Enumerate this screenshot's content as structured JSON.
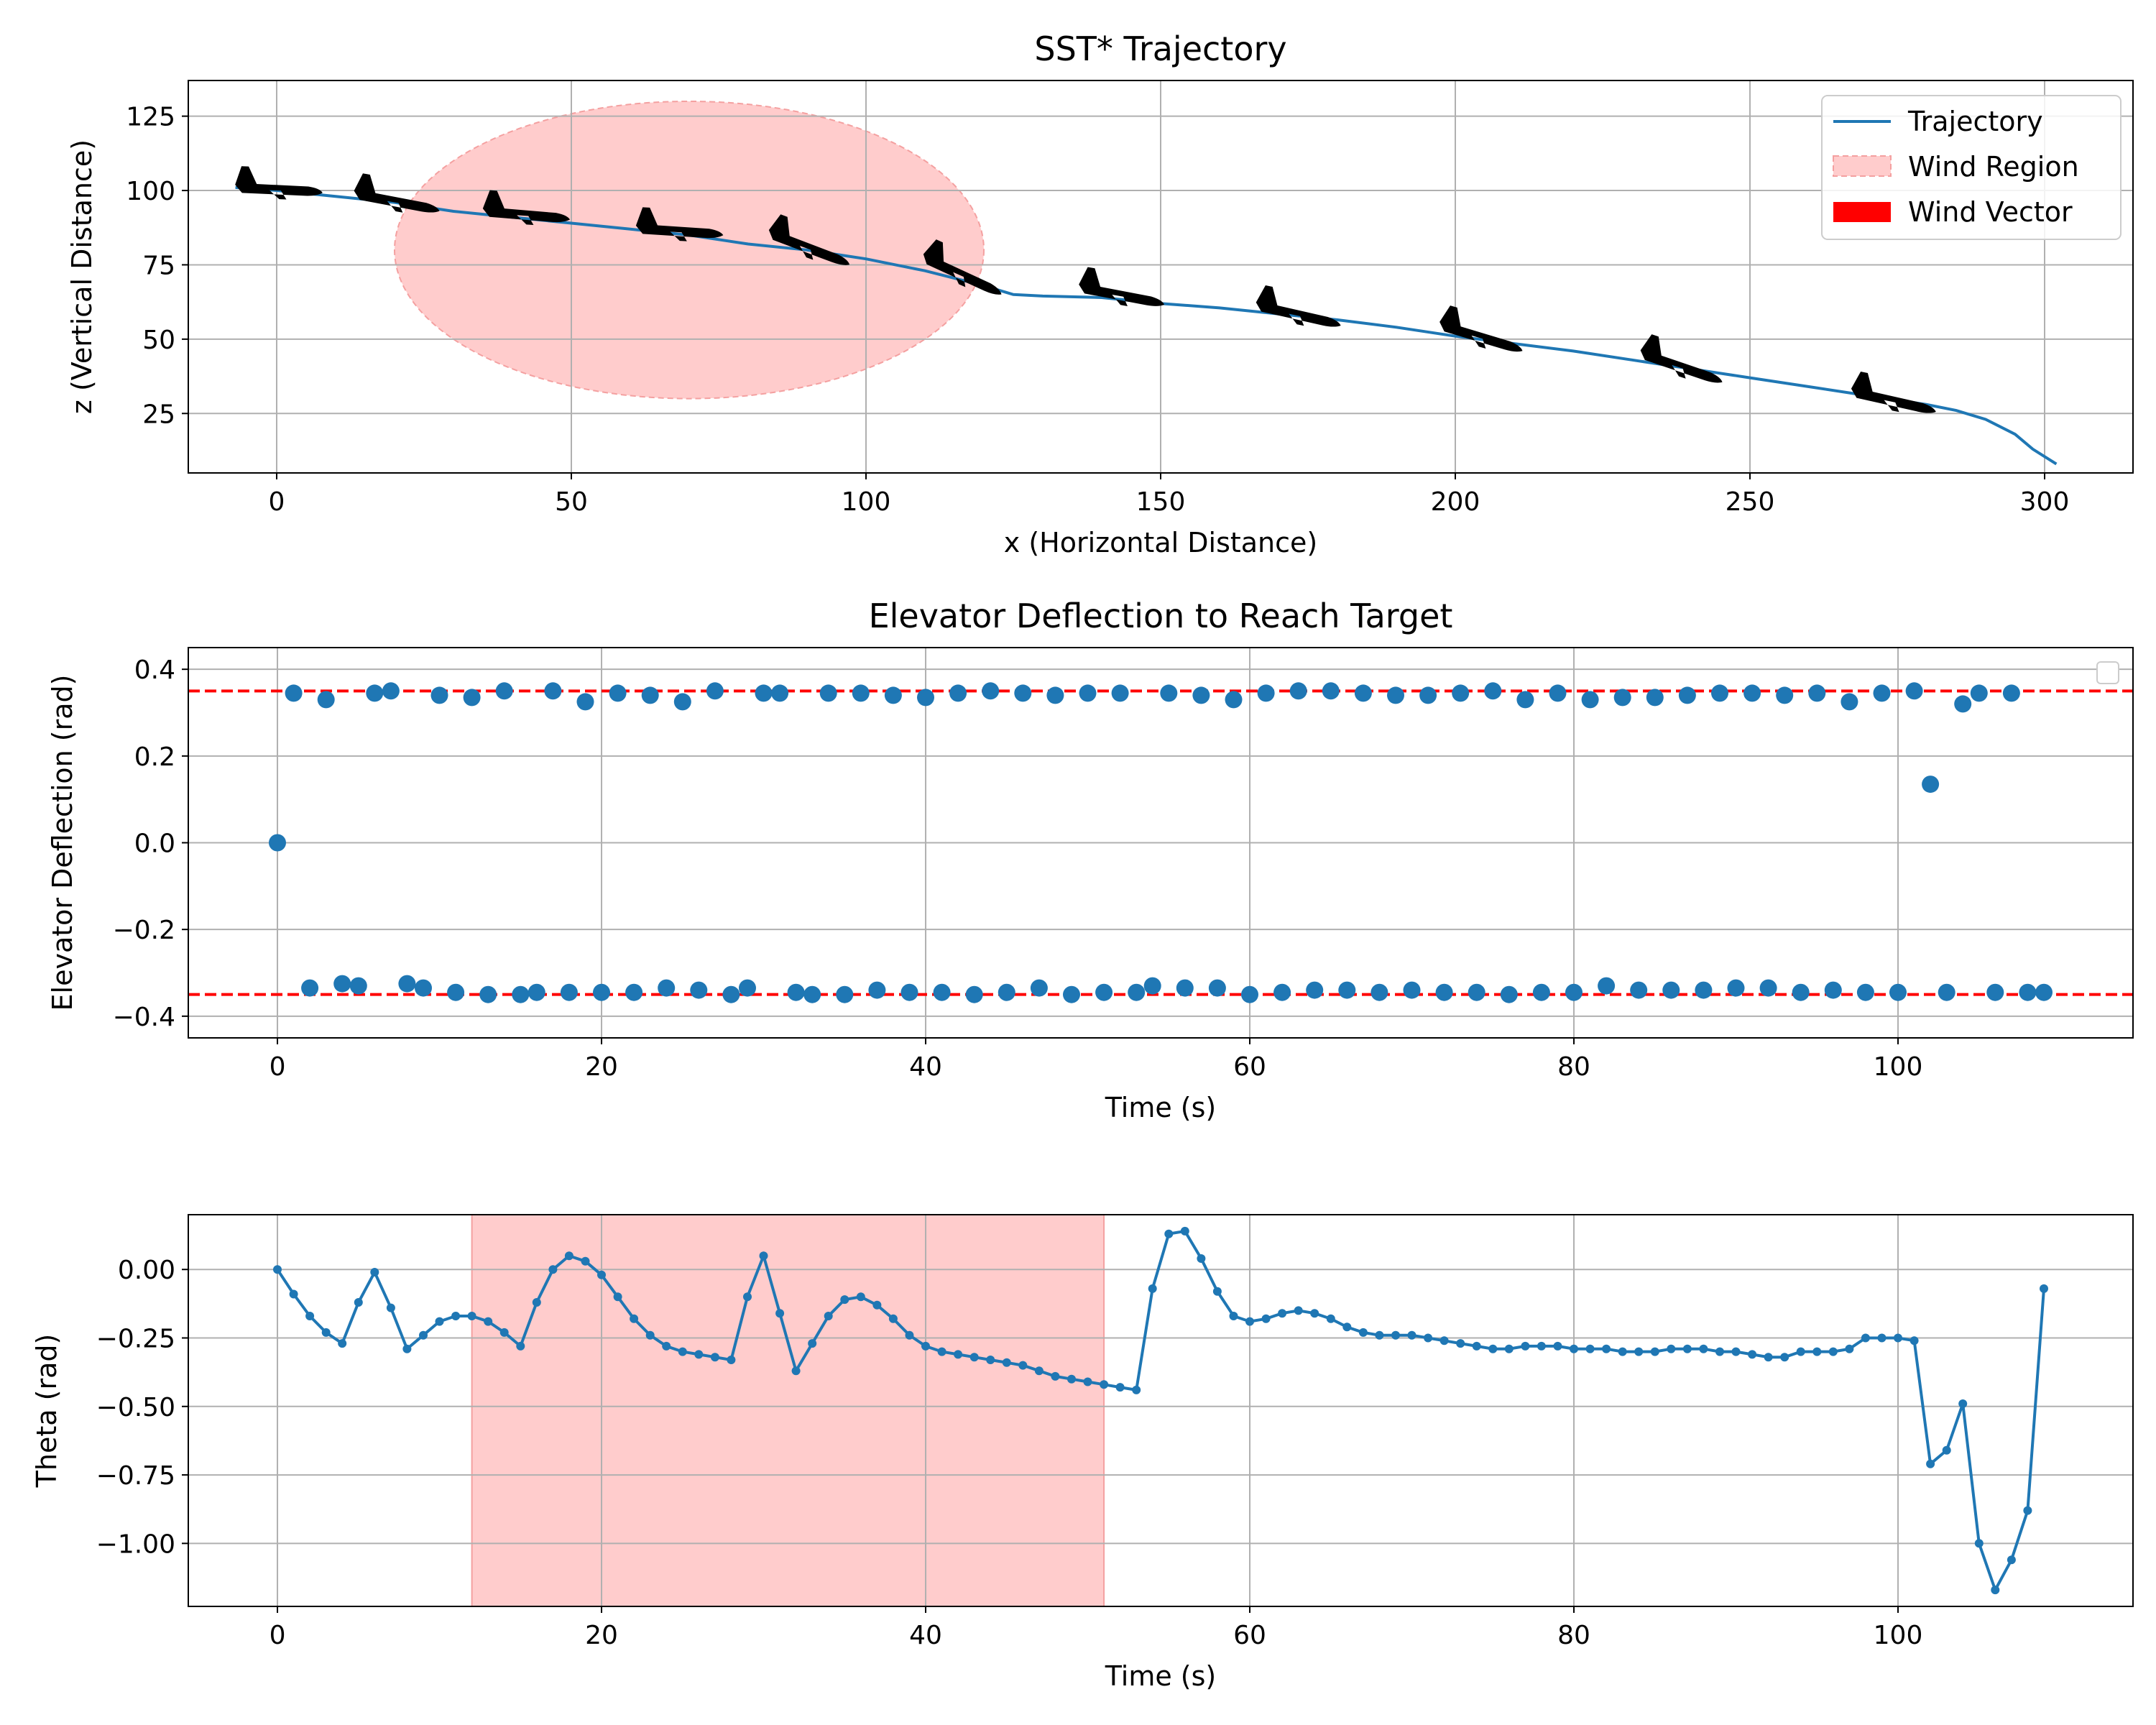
{
  "chart_data": [
    {
      "type": "line",
      "title": "SST* Trajectory",
      "xlabel": "x (Horizontal Distance)",
      "ylabel": "z (Vertical Distance)",
      "xlim": [
        -15,
        315
      ],
      "ylim": [
        5,
        137
      ],
      "xticks": [
        0,
        50,
        100,
        150,
        200,
        250,
        300
      ],
      "yticks": [
        25,
        50,
        75,
        100,
        125
      ],
      "xticklabels": [
        "0",
        "50",
        "100",
        "150",
        "200",
        "250",
        "300"
      ],
      "yticklabels": [
        "25",
        "50",
        "75",
        "100",
        "125"
      ],
      "grid": true,
      "legend_position": "top-right",
      "legend": [
        "Trajectory",
        "Wind Region",
        "Wind Vector"
      ],
      "colors": {
        "trajectory": "#1f77b4",
        "wind_region": "#ffcccc",
        "wind_region_edge": "#f4a0a0",
        "wind_vector": "#ff0000",
        "aircraft": "#000000"
      },
      "series": [
        {
          "name": "Trajectory",
          "x": [
            -7,
            0,
            10,
            20,
            30,
            40,
            50,
            60,
            70,
            80,
            90,
            100,
            110,
            120,
            125,
            130,
            140,
            150,
            160,
            170,
            180,
            190,
            200,
            210,
            220,
            230,
            240,
            250,
            260,
            270,
            280,
            285,
            290,
            295,
            298,
            302
          ],
          "y": [
            101,
            100,
            98,
            96,
            93,
            91,
            89,
            87,
            85,
            82,
            80,
            77,
            73,
            68,
            65,
            64.5,
            64,
            62,
            60.5,
            58.5,
            56.5,
            54,
            51,
            48.5,
            46,
            43,
            40,
            37,
            34,
            31,
            28,
            26,
            23,
            18,
            13,
            8
          ]
        }
      ],
      "wind_region": {
        "center_x": 70,
        "center_z": 80,
        "radius_x": 50,
        "radius_z": 50
      },
      "aircraft": [
        {
          "x": 0,
          "z": 100.5,
          "angle_deg": 2
        },
        {
          "x": 20,
          "z": 96.5,
          "angle_deg": 10
        },
        {
          "x": 42,
          "z": 92,
          "angle_deg": 4
        },
        {
          "x": 68,
          "z": 86.5,
          "angle_deg": 3
        },
        {
          "x": 90,
          "z": 81,
          "angle_deg": 20
        },
        {
          "x": 116,
          "z": 72,
          "angle_deg": 24
        },
        {
          "x": 143,
          "z": 65,
          "angle_deg": 10
        },
        {
          "x": 173,
          "z": 58.5,
          "angle_deg": 12
        },
        {
          "x": 204,
          "z": 51,
          "angle_deg": 16
        },
        {
          "x": 238,
          "z": 41,
          "angle_deg": 18
        },
        {
          "x": 274,
          "z": 29.5,
          "angle_deg": 12
        }
      ]
    },
    {
      "type": "scatter",
      "title": "Elevator Deflection to Reach Target",
      "xlabel": "Time (s)",
      "ylabel": "Elevator Deflection (rad)",
      "xlim": [
        -5.5,
        114.5
      ],
      "ylim": [
        -0.45,
        0.45
      ],
      "xticks": [
        0,
        20,
        40,
        60,
        80,
        100
      ],
      "yticks": [
        -0.4,
        -0.2,
        0.0,
        0.2,
        0.4
      ],
      "xticklabels": [
        "0",
        "20",
        "40",
        "60",
        "80",
        "100"
      ],
      "yticklabels": [
        "−0.4",
        "−0.2",
        "0.0",
        "0.2",
        "0.4"
      ],
      "grid": true,
      "legend_position": "top-right",
      "reference_lines": [
        0.35,
        -0.35
      ],
      "colors": {
        "points": "#1f77b4",
        "reference": "#ff0000"
      },
      "series": [
        {
          "x": [
            0,
            1,
            2,
            3,
            4,
            5,
            6,
            7,
            8,
            9,
            10,
            11,
            12,
            13,
            14,
            15,
            16,
            17,
            18,
            19,
            20,
            21,
            22,
            23,
            24,
            25,
            26,
            27,
            28,
            29,
            30,
            31,
            32,
            33,
            34,
            35,
            36,
            37,
            38,
            39,
            40,
            41,
            42,
            43,
            44,
            45,
            46,
            47,
            48,
            49,
            50,
            51,
            52,
            53,
            54,
            55,
            56,
            57,
            58,
            59,
            60,
            61,
            62,
            63,
            64,
            65,
            66,
            67,
            68,
            69,
            70,
            71,
            72,
            73,
            74,
            75,
            76,
            77,
            78,
            79,
            80,
            81,
            82,
            83,
            84,
            85,
            86,
            87,
            88,
            89,
            90,
            91,
            92,
            93,
            94,
            95,
            96,
            97,
            98,
            99,
            100,
            101,
            102,
            103,
            104,
            105,
            106,
            107,
            108,
            109
          ],
          "y": [
            0.0,
            0.345,
            -0.335,
            0.33,
            -0.325,
            -0.33,
            0.345,
            0.35,
            -0.325,
            -0.335,
            0.34,
            -0.345,
            0.335,
            -0.35,
            0.35,
            -0.35,
            -0.345,
            0.35,
            -0.345,
            0.325,
            -0.345,
            0.345,
            -0.345,
            0.34,
            -0.335,
            0.325,
            -0.34,
            0.35,
            -0.35,
            -0.335,
            0.345,
            0.345,
            -0.345,
            -0.35,
            0.345,
            -0.35,
            0.345,
            -0.34,
            0.34,
            -0.345,
            0.335,
            -0.345,
            0.345,
            -0.35,
            0.35,
            -0.345,
            0.345,
            -0.335,
            0.34,
            -0.35,
            0.345,
            -0.345,
            0.345,
            -0.345,
            -0.33,
            0.345,
            -0.335,
            0.34,
            -0.335,
            0.33,
            -0.35,
            0.345,
            -0.345,
            0.35,
            -0.34,
            0.35,
            -0.34,
            0.345,
            -0.345,
            0.34,
            -0.34,
            0.34,
            -0.345,
            0.345,
            -0.345,
            0.35,
            -0.35,
            0.33,
            -0.345,
            0.345,
            -0.345,
            0.33,
            -0.33,
            0.335,
            -0.34,
            0.335,
            -0.34,
            0.34,
            -0.34,
            0.345,
            -0.335,
            0.345,
            -0.335,
            0.34,
            -0.345,
            0.345,
            -0.34,
            0.325,
            -0.345,
            0.345,
            -0.345,
            0.35,
            0.135,
            -0.345,
            0.32,
            0.345,
            -0.345,
            0.345,
            -0.345,
            -0.345
          ]
        }
      ]
    },
    {
      "type": "line",
      "title": "",
      "xlabel": "Time (s)",
      "ylabel": "Theta (rad)",
      "xlim": [
        -5.5,
        114.5
      ],
      "ylim": [
        -1.23,
        0.2
      ],
      "xticks": [
        0,
        20,
        40,
        60,
        80,
        100
      ],
      "yticks": [
        0.0,
        -0.25,
        -0.5,
        -0.75,
        -1.0
      ],
      "xticklabels": [
        "0",
        "20",
        "40",
        "60",
        "80",
        "100"
      ],
      "yticklabels": [
        "0.00",
        "−0.25",
        "−0.50",
        "−0.75",
        "−1.00"
      ],
      "grid": true,
      "shaded_span": [
        12,
        51
      ],
      "colors": {
        "line": "#1f77b4",
        "shade": "#ffcccc",
        "shade_edge": "#f4a0a0"
      },
      "series": [
        {
          "x": [
            0,
            1,
            2,
            3,
            4,
            5,
            6,
            7,
            8,
            9,
            10,
            11,
            12,
            13,
            14,
            15,
            16,
            17,
            18,
            19,
            20,
            21,
            22,
            23,
            24,
            25,
            26,
            27,
            28,
            29,
            30,
            31,
            32,
            33,
            34,
            35,
            36,
            37,
            38,
            39,
            40,
            41,
            42,
            43,
            44,
            45,
            46,
            47,
            48,
            49,
            50,
            51,
            52,
            53,
            54,
            55,
            56,
            57,
            58,
            59,
            60,
            61,
            62,
            63,
            64,
            65,
            66,
            67,
            68,
            69,
            70,
            71,
            72,
            73,
            74,
            75,
            76,
            77,
            78,
            79,
            80,
            81,
            82,
            83,
            84,
            85,
            86,
            87,
            88,
            89,
            90,
            91,
            92,
            93,
            94,
            95,
            96,
            97,
            98,
            99,
            100,
            101,
            102,
            103,
            104,
            105,
            106,
            107,
            108,
            109
          ],
          "y": [
            0.0,
            -0.09,
            -0.17,
            -0.23,
            -0.27,
            -0.12,
            -0.01,
            -0.14,
            -0.29,
            -0.24,
            -0.19,
            -0.17,
            -0.17,
            -0.19,
            -0.23,
            -0.28,
            -0.12,
            0.0,
            0.05,
            0.03,
            -0.02,
            -0.1,
            -0.18,
            -0.24,
            -0.28,
            -0.3,
            -0.31,
            -0.32,
            -0.33,
            -0.1,
            0.05,
            -0.16,
            -0.37,
            -0.27,
            -0.17,
            -0.11,
            -0.1,
            -0.13,
            -0.18,
            -0.24,
            -0.28,
            -0.3,
            -0.31,
            -0.32,
            -0.33,
            -0.34,
            -0.35,
            -0.37,
            -0.39,
            -0.4,
            -0.41,
            -0.42,
            -0.43,
            -0.44,
            -0.07,
            0.13,
            0.14,
            0.04,
            -0.08,
            -0.17,
            -0.19,
            -0.18,
            -0.16,
            -0.15,
            -0.16,
            -0.18,
            -0.21,
            -0.23,
            -0.24,
            -0.24,
            -0.24,
            -0.25,
            -0.26,
            -0.27,
            -0.28,
            -0.29,
            -0.29,
            -0.28,
            -0.28,
            -0.28,
            -0.29,
            -0.29,
            -0.29,
            -0.3,
            -0.3,
            -0.3,
            -0.29,
            -0.29,
            -0.29,
            -0.3,
            -0.3,
            -0.31,
            -0.32,
            -0.32,
            -0.3,
            -0.3,
            -0.3,
            -0.29,
            -0.25,
            -0.25,
            -0.25,
            -0.26,
            -0.71,
            -0.66,
            -0.49,
            -1.0,
            -1.17,
            -1.06,
            -0.88,
            -0.07
          ]
        }
      ]
    }
  ]
}
